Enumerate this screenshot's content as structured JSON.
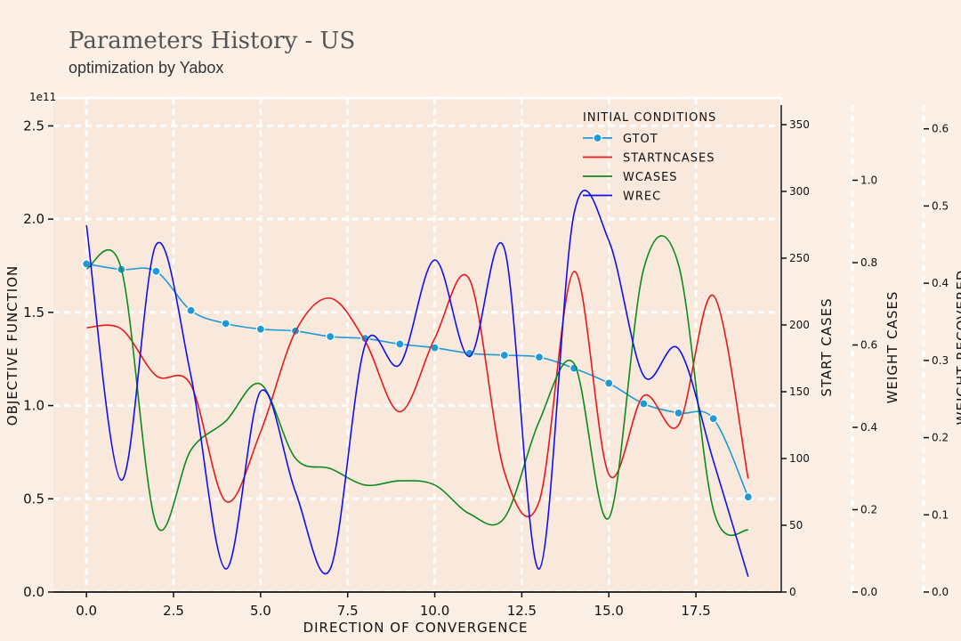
{
  "chart_data": {
    "type": "line",
    "title": "Parameters History - US",
    "subtitle": "optimization by Yabox",
    "xlabel": "DIRECTION OF CONVERGENCE",
    "ylabel": "OBJECTIVE FUNCTION",
    "y_offset_text": "1e11",
    "xlim": [
      -0.95,
      19.95
    ],
    "ylim": [
      0,
      2.65
    ],
    "x_ticks": [
      "0.0",
      "2.5",
      "5.0",
      "7.5",
      "10.0",
      "12.5",
      "15.0",
      "17.5"
    ],
    "y_ticks": [
      "0.0",
      "0.5",
      "1.0",
      "1.5",
      "2.0",
      "2.5"
    ],
    "grid": true,
    "legend_title": "INITIAL CONDITIONS",
    "legend_position": "top-right",
    "series": [
      {
        "name": "GTOT",
        "color": "#1f9ad6",
        "axis": "left",
        "marker": "circle",
        "x": [
          0,
          1,
          2,
          3,
          4,
          5,
          6,
          7,
          8,
          9,
          10,
          11,
          12,
          13,
          14,
          15,
          16,
          17,
          18,
          19
        ],
        "values": [
          1.76,
          1.73,
          1.72,
          1.51,
          1.44,
          1.41,
          1.4,
          1.37,
          1.36,
          1.33,
          1.31,
          1.28,
          1.27,
          1.26,
          1.2,
          1.12,
          1.01,
          0.96,
          0.93,
          0.51
        ]
      },
      {
        "name": "STARTNCASES",
        "color": "#e31a1c",
        "axis": "start_cases",
        "x": [
          0,
          1,
          2,
          3,
          4,
          5,
          6,
          7,
          8,
          9,
          10,
          11,
          12,
          13,
          14,
          15,
          16,
          17,
          18,
          19
        ],
        "values": [
          198,
          197,
          162,
          155,
          68,
          120,
          195,
          220,
          188,
          135,
          190,
          234,
          90,
          68,
          240,
          88,
          147,
          125,
          222,
          85
        ]
      },
      {
        "name": "WCASES",
        "color": "#0c8a1c",
        "axis": "weight_cases",
        "x": [
          0,
          1,
          2,
          3,
          4,
          5,
          6,
          7,
          8,
          9,
          10,
          11,
          12,
          13,
          14,
          15,
          16,
          17,
          18,
          19
        ],
        "values": [
          0.785,
          0.785,
          0.165,
          0.345,
          0.415,
          0.505,
          0.325,
          0.3,
          0.26,
          0.27,
          0.26,
          0.19,
          0.18,
          0.415,
          0.555,
          0.18,
          0.785,
          0.795,
          0.2,
          0.15
        ]
      },
      {
        "name": "WREC",
        "color": "#1010ee",
        "axis": "weight_recovered",
        "x": [
          0,
          1,
          2,
          3,
          4,
          5,
          6,
          7,
          8,
          9,
          10,
          11,
          12,
          13,
          14,
          15,
          16,
          17,
          18,
          19
        ],
        "values": [
          0.475,
          0.145,
          0.45,
          0.28,
          0.03,
          0.26,
          0.13,
          0.03,
          0.32,
          0.295,
          0.43,
          0.305,
          0.445,
          0.03,
          0.49,
          0.455,
          0.28,
          0.315,
          0.17,
          0.02
        ]
      }
    ],
    "start_cases_axis": {
      "label": "START CASES",
      "ylim": [
        0,
        370
      ],
      "ticks": [
        "0",
        "50",
        "100",
        "150",
        "200",
        "250",
        "300",
        "350"
      ]
    },
    "weight_cases_axis": {
      "label": "WEIGHT CASES",
      "ylim": [
        0,
        1.2
      ],
      "ticks": [
        "0.0",
        "0.2",
        "0.4",
        "0.6",
        "0.8",
        "1.0"
      ]
    },
    "weight_recovered_axis": {
      "label": "WEIGHT RECOVERED",
      "ylim": [
        0,
        0.64
      ],
      "ticks": [
        "0.0",
        "0.1",
        "0.2",
        "0.3",
        "0.4",
        "0.5",
        "0.6"
      ]
    }
  }
}
